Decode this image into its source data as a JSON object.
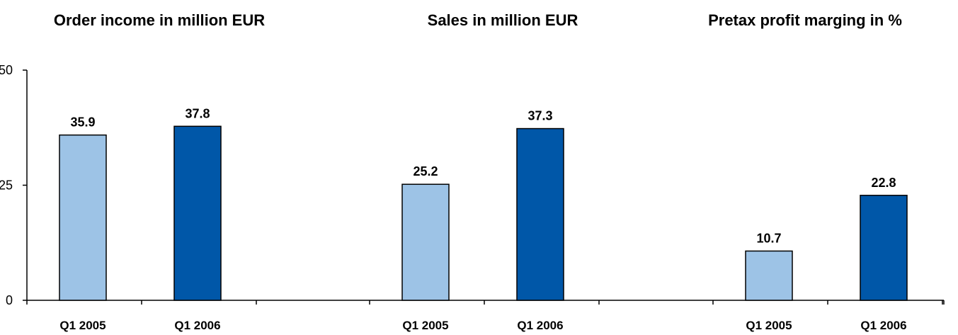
{
  "chart_data": {
    "type": "bar",
    "titles": [
      "Order income in million EUR",
      "Sales in million EUR",
      "Pretax profit marging in %"
    ],
    "categories": [
      "Q1 2005",
      "Q1 2006"
    ],
    "groups": [
      {
        "title": "Order income in million EUR",
        "values": [
          35.9,
          37.8
        ]
      },
      {
        "title": "Sales in million EUR",
        "values": [
          25.2,
          37.3
        ]
      },
      {
        "title": "Pretax profit marging in %",
        "values": [
          10.7,
          22.8
        ]
      }
    ],
    "yticks": [
      0,
      25,
      50
    ],
    "ytick_labels": [
      "0",
      "25",
      "50"
    ],
    "ylim": [
      0,
      50
    ],
    "xlabel": "",
    "ylabel": "",
    "grid": false,
    "legend": "none",
    "colors": {
      "Q1 2005": "#9dc3e6",
      "Q1 2006": "#0057a8",
      "outline": "#000000"
    }
  }
}
